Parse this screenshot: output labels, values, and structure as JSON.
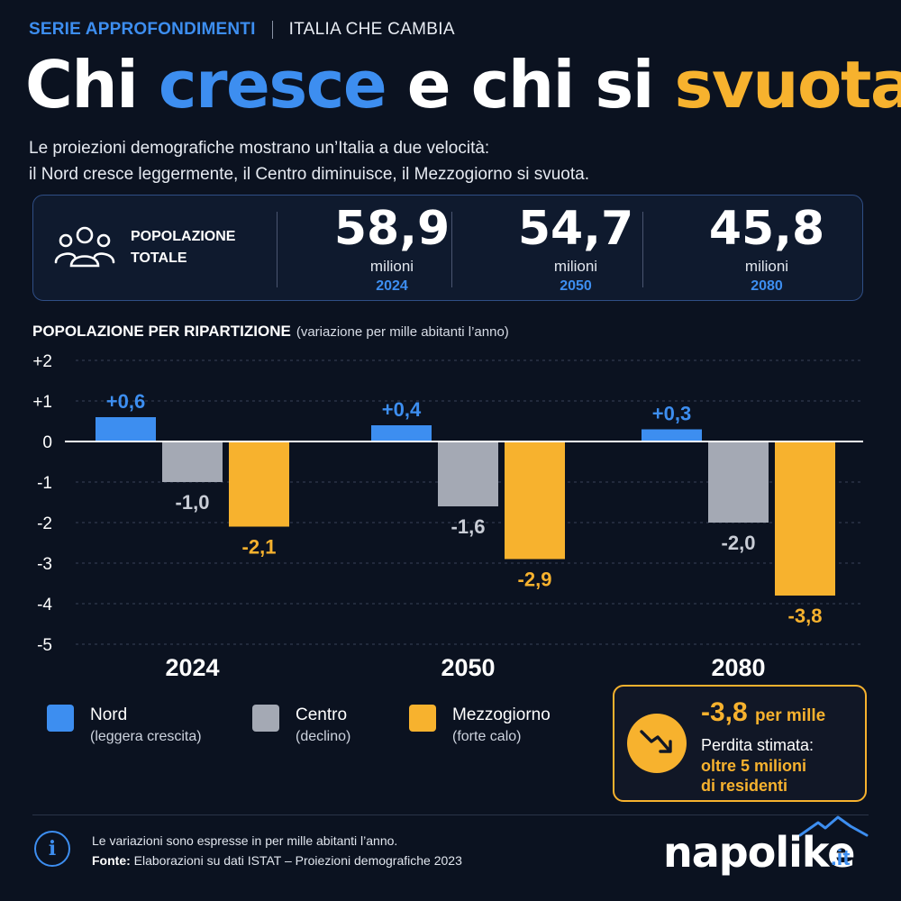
{
  "header": {
    "series_label": "SERIE APPROFONDIMENTI",
    "series_sub": "ITALIA CHE CAMBIA",
    "title_part1": "Chi ",
    "title_part2": "cresce",
    "title_part3": " e chi si ",
    "title_part4": "svuota",
    "intro_line1": "Le proiezioni demografiche mostrano un’Italia a due velocità:",
    "intro_line2": "il Nord cresce leggermente, il Centro diminuisce, il Mezzogiorno si svuota."
  },
  "stats": {
    "label_line1": "POPOLAZIONE",
    "label_line2": "TOTALE",
    "items": [
      {
        "value": "58,9",
        "unit": "milioni",
        "year": "2024"
      },
      {
        "value": "54,7",
        "unit": "milioni",
        "year": "2050"
      },
      {
        "value": "45,8",
        "unit": "milioni",
        "year": "2080"
      }
    ]
  },
  "section": {
    "title": "POPOLAZIONE PER RIPARTIZIONE",
    "note": "(variazione per mille abitanti l’anno)"
  },
  "chart_data": {
    "type": "bar",
    "categories": [
      "2024",
      "2050",
      "2080"
    ],
    "series": [
      {
        "name": "Nord",
        "values": [
          0.6,
          0.4,
          0.3
        ],
        "labels": [
          "+0,6",
          "+0,4",
          "+0,3"
        ],
        "color": "#3d8ef0",
        "label_color": "#3d8ef0"
      },
      {
        "name": "Centro",
        "values": [
          -1.0,
          -1.6,
          -2.0
        ],
        "labels": [
          "-1,0",
          "-1,6",
          "-2,0"
        ],
        "color": "#a4a9b4",
        "label_color": "#c9cdd6"
      },
      {
        "name": "Mezzogiorno",
        "values": [
          -2.1,
          -2.9,
          -3.8
        ],
        "labels": [
          "-2,1",
          "-2,9",
          "-3,8"
        ],
        "color": "#f7b22e",
        "label_color": "#f7b22e"
      }
    ],
    "yticks": [
      "+2",
      "+1",
      "0",
      "-1",
      "-2",
      "-3",
      "-4",
      "-5"
    ],
    "ytick_values": [
      2,
      1,
      0,
      -1,
      -2,
      -3,
      -4,
      -5
    ],
    "ylim": [
      -5,
      2
    ],
    "grid": true
  },
  "legend": [
    {
      "name": "Nord",
      "note": "(leggera crescita)",
      "color": "#3d8ef0"
    },
    {
      "name": "Centro",
      "note": "(declino)",
      "color": "#a4a9b4"
    },
    {
      "name": "Mezzogiorno",
      "note": "(forte calo)",
      "color": "#f7b22e"
    }
  ],
  "callout": {
    "icon": "trend-down-icon",
    "value": "-3,8",
    "value_unit": "per mille",
    "text": "Perdita stimata:",
    "highlight_line1": "oltre 5 milioni",
    "highlight_line2": "di residenti"
  },
  "footer": {
    "note": "Le variazioni sono espresse in per mille abitanti l’anno.",
    "source_label": "Fonte:",
    "source_text": " Elaborazioni su dati ISTAT – Proiezioni demografiche 2023"
  },
  "brand": {
    "name": "napolike",
    "tld": ".it"
  },
  "colors": {
    "background": "#0b1220",
    "accent_blue": "#3d8ef0",
    "accent_orange": "#f7b22e",
    "grey": "#a4a9b4"
  }
}
